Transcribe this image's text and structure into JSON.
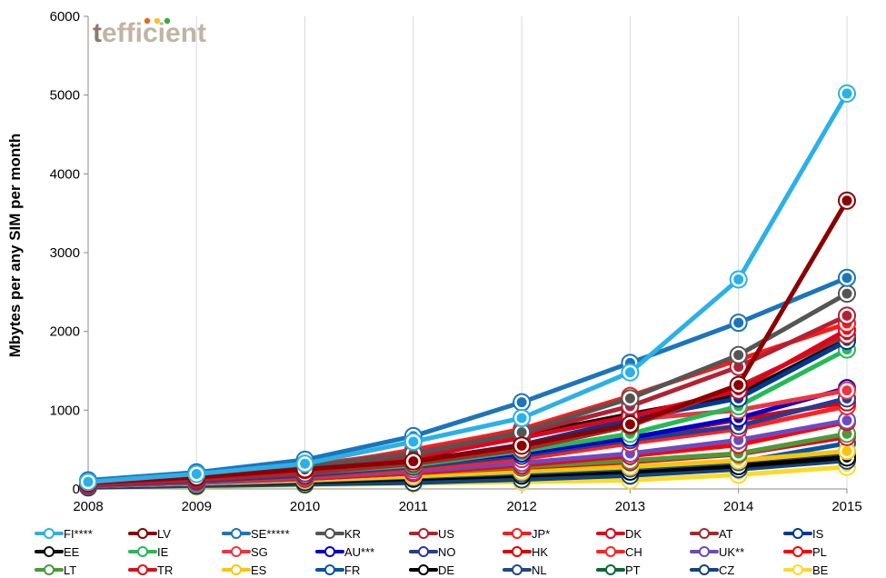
{
  "brand": {
    "prefix": "t",
    "name": "efficient"
  },
  "chart_data": {
    "type": "line",
    "ylabel": "Mbytes per any SIM per month",
    "xlabel": "",
    "x": [
      "2008",
      "2009",
      "2010",
      "2011",
      "2012",
      "2013",
      "2014",
      "2015"
    ],
    "ylim": [
      0,
      6000
    ],
    "yticks": [
      0,
      1000,
      2000,
      3000,
      4000,
      5000,
      6000
    ],
    "grid": "vertical-only",
    "legend": "bottom",
    "series": [
      {
        "name": "FI****",
        "color": "#29b1e8",
        "values": [
          90,
          190,
          320,
          600,
          900,
          1480,
          2660,
          5020
        ]
      },
      {
        "name": "LV",
        "color": "#8b0000",
        "values": [
          80,
          150,
          250,
          350,
          550,
          820,
          1320,
          3660
        ]
      },
      {
        "name": "SE*****",
        "color": "#1b75bb",
        "values": [
          110,
          210,
          370,
          670,
          1100,
          1600,
          2110,
          2680
        ]
      },
      {
        "name": "KR",
        "color": "#555555",
        "values": [
          90,
          170,
          280,
          450,
          720,
          1150,
          1700,
          2480
        ]
      },
      {
        "name": "US",
        "color": "#b22234",
        "values": [
          80,
          160,
          260,
          420,
          700,
          1050,
          1550,
          2200
        ]
      },
      {
        "name": "JP*",
        "color": "#ff1a1a",
        "values": [
          90,
          180,
          290,
          480,
          760,
          1180,
          1640,
          2100
        ]
      },
      {
        "name": "DK",
        "color": "#e2001a",
        "values": [
          70,
          140,
          240,
          400,
          650,
          920,
          1250,
          2020
        ]
      },
      {
        "name": "AT",
        "color": "#a52a2a",
        "values": [
          60,
          120,
          200,
          320,
          500,
          800,
          1300,
          1950
        ]
      },
      {
        "name": "IS",
        "color": "#003897",
        "values": [
          70,
          130,
          220,
          350,
          560,
          880,
          1150,
          1880
        ]
      },
      {
        "name": "EE",
        "color": "#111111",
        "values": [
          70,
          140,
          230,
          380,
          680,
          950,
          1200,
          1900
        ]
      },
      {
        "name": "IE",
        "color": "#22bb55",
        "values": [
          60,
          120,
          200,
          300,
          480,
          700,
          1050,
          1770
        ]
      },
      {
        "name": "SG",
        "color": "#ef3340",
        "values": [
          80,
          160,
          260,
          500,
          750,
          880,
          1000,
          1250
        ]
      },
      {
        "name": "AU***",
        "color": "#0000cc",
        "values": [
          60,
          120,
          200,
          320,
          450,
          650,
          900,
          1280
        ]
      },
      {
        "name": "NO",
        "color": "#2b3a8f",
        "values": [
          50,
          100,
          170,
          280,
          420,
          620,
          800,
          1150
        ]
      },
      {
        "name": "HK",
        "color": "#de0000",
        "values": [
          50,
          110,
          180,
          300,
          450,
          640,
          880,
          1100
        ]
      },
      {
        "name": "CH",
        "color": "#ff2222",
        "values": [
          40,
          90,
          150,
          250,
          380,
          580,
          760,
          1050
        ]
      },
      {
        "name": "UK**",
        "color": "#6a4bc4",
        "values": [
          40,
          80,
          140,
          220,
          330,
          450,
          620,
          870
        ]
      },
      {
        "name": "PL",
        "color": "#ff0000",
        "values": [
          40,
          80,
          130,
          200,
          300,
          420,
          560,
          850
        ]
      },
      {
        "name": "LT",
        "color": "#4a9a3a",
        "values": [
          40,
          80,
          130,
          200,
          280,
          360,
          450,
          700
        ]
      },
      {
        "name": "TR",
        "color": "#e30a17",
        "values": [
          40,
          80,
          130,
          200,
          270,
          340,
          440,
          660
        ]
      },
      {
        "name": "ES",
        "color": "#ffc400",
        "values": [
          40,
          70,
          110,
          160,
          220,
          280,
          360,
          480
        ]
      },
      {
        "name": "FR",
        "color": "#0055a4",
        "values": [
          30,
          60,
          100,
          150,
          200,
          260,
          340,
          580
        ]
      },
      {
        "name": "DE",
        "color": "#000000",
        "values": [
          30,
          60,
          90,
          130,
          170,
          220,
          290,
          400
        ]
      },
      {
        "name": "NL",
        "color": "#21468b",
        "values": [
          30,
          60,
          90,
          140,
          190,
          240,
          310,
          420
        ]
      },
      {
        "name": "PT",
        "color": "#046a38",
        "values": [
          40,
          70,
          110,
          160,
          210,
          260,
          330,
          440
        ]
      },
      {
        "name": "CZ",
        "color": "#11457e",
        "values": [
          20,
          40,
          60,
          80,
          120,
          170,
          250,
          360
        ]
      },
      {
        "name": "BE",
        "color": "#fdda24",
        "values": [
          20,
          30,
          50,
          70,
          90,
          110,
          180,
          280
        ]
      }
    ]
  }
}
